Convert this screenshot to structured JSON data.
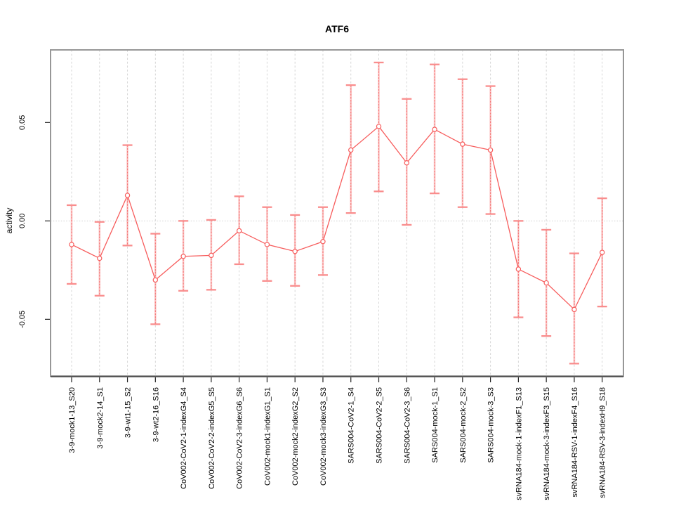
{
  "chart_data": {
    "type": "line",
    "title": "ATF6",
    "ylabel": "activity",
    "xlabel": "",
    "legend": "none",
    "grid": "vertical dotted gridline per category; dotted horizontal line at y=0",
    "categories": [
      "3-9-mock1-13_S20",
      "3-9-mock2-14_S1",
      "3-9-wt1-15_S2",
      "3-9-wt2-16_S16",
      "CoV002-CoV2-1-indexG4_S4",
      "CoV002-CoV2-2-indexG5_S5",
      "CoV002-CoV2-3-indexG6_S6",
      "CoV002-mock1-indexG1_S1",
      "CoV002-mock2-indexG2_S2",
      "CoV002-mock3-indexG3_S3",
      "SARS004-CoV2-1_S4",
      "SARS004-CoV2-2_S5",
      "SARS004-CoV2-3_S6",
      "SARS004-mock-1_S1",
      "SARS004-mock-2_S2",
      "SARS004-mock-3_S3",
      "svRNA184-mock-1-indexF1_S13",
      "svRNA184-mock-3-indexF3_S15",
      "svRNA184-RSV-1-indexF4_S16",
      "svRNA184-RSV-3-indexH9_S18"
    ],
    "values": [
      -0.012,
      -0.019,
      0.013,
      -0.03,
      -0.018,
      -0.0175,
      -0.005,
      -0.012,
      -0.0155,
      -0.0105,
      0.036,
      0.048,
      0.0295,
      0.0465,
      0.039,
      0.036,
      -0.0245,
      -0.0315,
      -0.045,
      -0.016
    ],
    "error_high": [
      0.008,
      -0.0005,
      0.0385,
      -0.0065,
      0.0,
      0.0005,
      0.0125,
      0.007,
      0.003,
      0.007,
      0.069,
      0.0805,
      0.062,
      0.0795,
      0.072,
      0.0685,
      0.0,
      -0.0045,
      -0.0165,
      0.0115
    ],
    "error_low": [
      -0.032,
      -0.038,
      -0.0125,
      -0.0525,
      -0.0355,
      -0.035,
      -0.022,
      -0.0305,
      -0.033,
      -0.0275,
      0.004,
      0.015,
      -0.002,
      0.014,
      0.007,
      0.0035,
      -0.049,
      -0.0585,
      -0.0725,
      -0.0435
    ],
    "ylim": [
      -0.0788,
      0.0869
    ],
    "yticks": [
      {
        "value": -0.05,
        "label": "-0.05"
      },
      {
        "value": 0.0,
        "label": "0.00"
      },
      {
        "value": 0.05,
        "label": "0.05"
      }
    ],
    "colors": {
      "line": "#f75c5c",
      "point_fill": "#ffffff",
      "error_stem_light": "rgba(250,120,120,0.40)",
      "error_stem_dash": "#f87474",
      "error_cap": "#f98d8d",
      "gridline": "#d6d6d6",
      "zero_line": "#cfcfcf",
      "box_border": "#979797",
      "axis": "#222222",
      "text": "#000000"
    }
  }
}
